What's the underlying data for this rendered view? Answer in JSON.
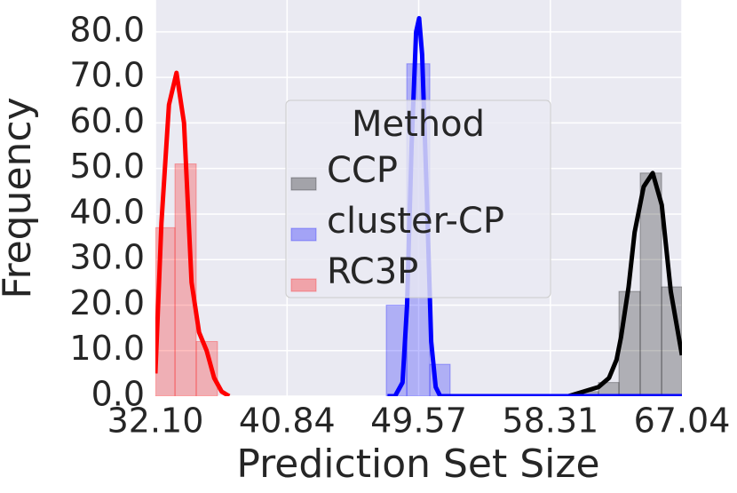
{
  "chart_data": {
    "type": "histogram",
    "x_label": "Prediction Set Size",
    "y_label": "Frequency",
    "legend_title": "Method",
    "legend_position": "center",
    "grid": true,
    "xlim": [
      32.1,
      67.04
    ],
    "ylim": [
      0,
      87
    ],
    "xticks": [
      {
        "value": 32.1,
        "label": "32.10"
      },
      40.84,
      49.57,
      58.31,
      67.04
    ],
    "yticks": [
      {
        "value": 0,
        "label": "0.0"
      },
      {
        "value": 10,
        "label": "10.0"
      },
      {
        "value": 20,
        "label": "20.0"
      },
      {
        "value": 30,
        "label": "30.0"
      },
      {
        "value": 40,
        "label": "40.0"
      },
      {
        "value": 50,
        "label": "50.0"
      },
      {
        "value": 60,
        "label": "60.0"
      },
      {
        "value": 70,
        "label": "70.0"
      },
      {
        "value": 80,
        "label": "80.0"
      }
    ],
    "series": [
      {
        "name": "CCP",
        "color": "#000000",
        "bins": [
          60.15,
          61.5,
          62.86,
          64.27,
          65.69,
          67.04
        ],
        "values": [
          1,
          3,
          23,
          49,
          24
        ],
        "kde_x": [
          58.0,
          59.5,
          60.5,
          61.5,
          62.2,
          62.7,
          63.0,
          63.5,
          63.9,
          64.5,
          65.1,
          65.7,
          66.3,
          67.04
        ],
        "kde_y": [
          0,
          0,
          1,
          2,
          4,
          8,
          13,
          24,
          36,
          46,
          49,
          42,
          23,
          9
        ]
      },
      {
        "name": "cluster-CP",
        "color": "#0000ff",
        "bins": [
          47.42,
          48.78,
          50.31,
          51.66
        ],
        "values": [
          20,
          73,
          7
        ],
        "kde_x": [
          47.5,
          48.0,
          48.5,
          48.8,
          49.1,
          49.4,
          49.6,
          49.8,
          50.1,
          50.4,
          50.7,
          51.0,
          67.04
        ],
        "kde_y": [
          0,
          0,
          3,
          20,
          55,
          80,
          83,
          75,
          45,
          12,
          2,
          0,
          0
        ]
      },
      {
        "name": "RC3P",
        "color": "#ff0000",
        "bins": [
          32.1,
          33.4,
          34.81,
          36.22
        ],
        "values": [
          37,
          51,
          12
        ],
        "kde_x": [
          32.1,
          32.5,
          33.0,
          33.5,
          34.0,
          34.5,
          35.0,
          35.5,
          36.0,
          36.5,
          37.0
        ],
        "kde_y": [
          5,
          38,
          64,
          71,
          60,
          25,
          14,
          10,
          4,
          1,
          0
        ]
      }
    ]
  }
}
